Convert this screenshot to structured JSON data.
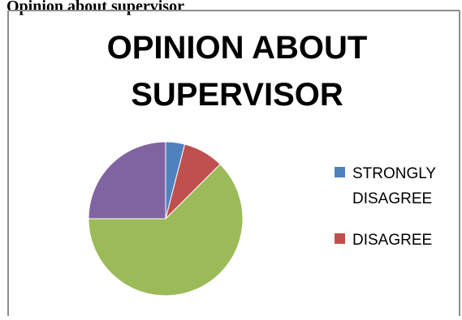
{
  "top_partial_text": "Opinion about supervisor",
  "chart_data": {
    "type": "pie",
    "title_lines": [
      "OPINION ABOUT",
      "SUPERVISOR"
    ],
    "slices": [
      {
        "label": "STRONGLY DISAGREE",
        "label_lines": [
          "STRONGLY",
          "DISAGREE"
        ],
        "value": 4,
        "color": "#4F81BD"
      },
      {
        "label": "DISAGREE",
        "label_lines": [
          "DISAGREE"
        ],
        "value": 8.5,
        "color": "#C0504D"
      },
      {
        "label": "",
        "label_lines": [],
        "value": 62.5,
        "color": "#9BBB59"
      },
      {
        "label": "",
        "label_lines": [],
        "value": 25,
        "color": "#8064A2"
      }
    ],
    "legend_position": "right",
    "start_angle_deg": 0,
    "direction": "clockwise"
  }
}
